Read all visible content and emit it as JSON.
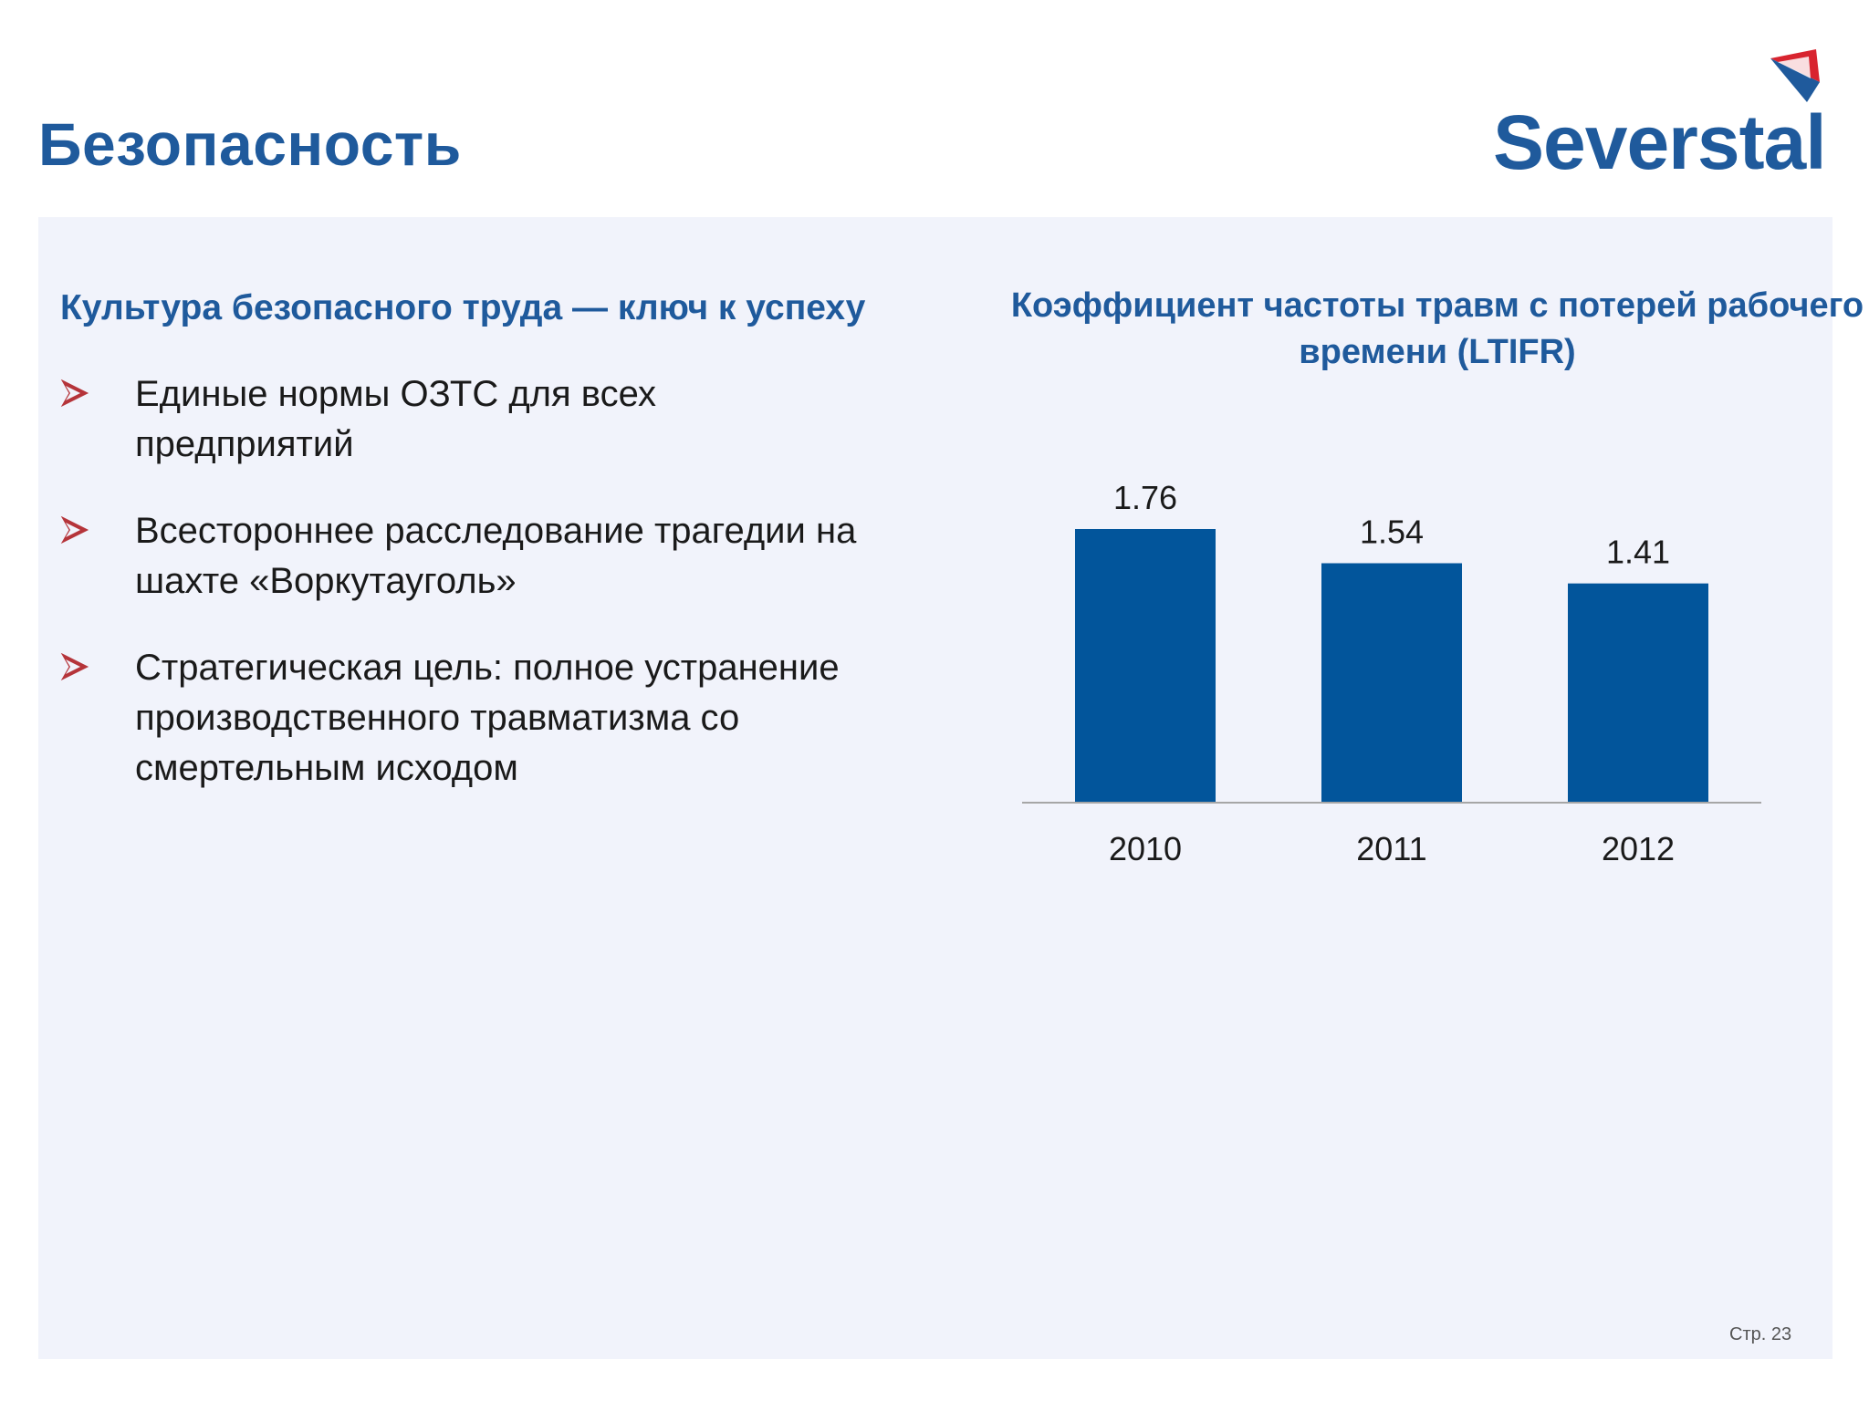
{
  "header": {
    "title": "Безопасность",
    "logo_text": "Severstal"
  },
  "left": {
    "heading": "Культура безопасного труда — ключ к успеху",
    "bullets": [
      "Единые нормы ОЗТС для всех предприятий",
      "Всестороннее расследование трагедии на шахте «Воркутауголь»",
      "Стратегическая цель: полное устранение производственного травматизма со смертельным исходом"
    ]
  },
  "chart_data": {
    "type": "bar",
    "title": "Коэффициент частоты травм с потерей рабочего времени (LTIFR)",
    "categories": [
      "2010",
      "2011",
      "2012"
    ],
    "values": [
      1.76,
      1.54,
      1.41
    ],
    "value_labels": [
      "1.76",
      "1.54",
      "1.41"
    ],
    "xlabel": "",
    "ylabel": "",
    "ylim": [
      0,
      1.76
    ],
    "grid": false,
    "legend": "none",
    "bar_color": "#02559b",
    "axis_color": "#a6a6a6"
  },
  "footer": {
    "page_number": "Стр. 23"
  },
  "colors": {
    "brand_blue": "#1f5a9c",
    "bullet_red": "#b5343a",
    "panel_bg": "#f1f3fb"
  }
}
